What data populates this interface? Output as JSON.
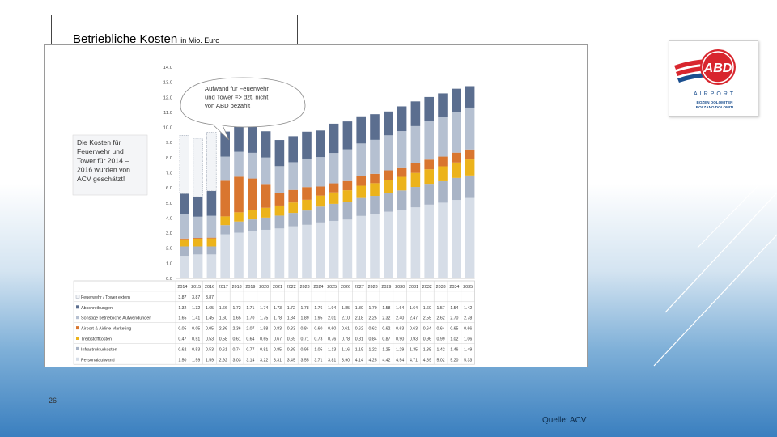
{
  "slide": {
    "title": "Betriebliche Kosten",
    "title_unit": "in Mio. Euro",
    "page_number": "26",
    "source": "Quelle: ACV"
  },
  "logo": {
    "brand": "ABD",
    "name": "AIRPORT",
    "sub1": "BOZEN DOLOMITEN",
    "sub2": "BOLZANO DOLOMITI",
    "colors": {
      "red": "#d8262e",
      "blue": "#1b4f8f"
    }
  },
  "chart_data": {
    "type": "bar",
    "stacked": true,
    "categories": [
      "2014",
      "2015",
      "2016",
      "2017",
      "2018",
      "2019",
      "2020",
      "2021",
      "2022",
      "2023",
      "2024",
      "2025",
      "2026",
      "2027",
      "2028",
      "2029",
      "2030",
      "2031",
      "2032",
      "2033",
      "2034",
      "2035"
    ],
    "ylim": [
      0,
      14
    ],
    "yticks": [
      "0.0",
      "1.0",
      "2.0",
      "3.0",
      "4.0",
      "5.0",
      "6.0",
      "7.0",
      "8.0",
      "9.0",
      "10.0",
      "11.0",
      "12.0",
      "13.0",
      "14.0"
    ],
    "series": [
      {
        "name": "Personalaufwand",
        "color": "#d6dde7",
        "values": [
          "1.50",
          "1.59",
          "1.59",
          "2.92",
          "3.03",
          "3.14",
          "3.22",
          "3.31",
          "3.45",
          "3.55",
          "3.71",
          "3.81",
          "3.90",
          "4.14",
          "4.25",
          "4.42",
          "4.54",
          "4.71",
          "4.89",
          "5.02",
          "5.20",
          "5.33"
        ]
      },
      {
        "name": "Infrastrukturkosten",
        "color": "#a9b4c6",
        "values": [
          "0.62",
          "0.53",
          "0.53",
          "0.61",
          "0.74",
          "0.77",
          "0.81",
          "0.85",
          "0.89",
          "0.95",
          "1.05",
          "1.13",
          "1.16",
          "1.19",
          "1.22",
          "1.25",
          "1.29",
          "1.35",
          "1.38",
          "1.42",
          "1.46",
          "1.49"
        ]
      },
      {
        "name": "Treibstoffkosten",
        "color": "#ecb31b",
        "values": [
          "0.47",
          "0.51",
          "0.53",
          "0.58",
          "0.61",
          "0.64",
          "0.65",
          "0.67",
          "0.69",
          "0.71",
          "0.73",
          "0.76",
          "0.78",
          "0.81",
          "0.84",
          "0.87",
          "0.90",
          "0.93",
          "0.96",
          "0.99",
          "1.02",
          "1.06"
        ]
      },
      {
        "name": "Airport & Airline Marketing",
        "color": "#d9762f",
        "values": [
          "0.05",
          "0.05",
          "0.05",
          "2.36",
          "2.36",
          "2.07",
          "1.58",
          "0.83",
          "0.83",
          "0.84",
          "0.60",
          "0.60",
          "0.61",
          "0.62",
          "0.62",
          "0.62",
          "0.63",
          "0.63",
          "0.64",
          "0.64",
          "0.65",
          "0.66"
        ]
      },
      {
        "name": "Sonstige betriebliche Aufwendungen",
        "color": "#b5c0d1",
        "values": [
          "1.65",
          "1.41",
          "1.45",
          "1.60",
          "1.65",
          "1.70",
          "1.75",
          "1.78",
          "1.84",
          "1.89",
          "1.95",
          "2.01",
          "2.10",
          "2.18",
          "2.25",
          "2.32",
          "2.40",
          "2.47",
          "2.55",
          "2.62",
          "2.70",
          "2.78"
        ]
      },
      {
        "name": "Abschreibungen",
        "color": "#5b6e8f",
        "values": [
          "1.32",
          "1.32",
          "1.65",
          "1.66",
          "1.72",
          "1.71",
          "1.74",
          "1.73",
          "1.72",
          "1.78",
          "1.76",
          "1.94",
          "1.85",
          "1.80",
          "1.70",
          "1.58",
          "1.64",
          "1.64",
          "1.60",
          "1.57",
          "1.54",
          "1.42"
        ]
      },
      {
        "name": "Feuerwehr / Tower extern",
        "color": "#f2f4f7",
        "values": [
          "3.87",
          "3.87",
          "3.87",
          "",
          "",
          "",
          "",
          "",
          "",
          "",
          "",
          "",
          "",
          "",
          "",
          "",
          "",
          "",
          "",
          "",
          "",
          ""
        ]
      }
    ],
    "annotations": [
      {
        "text": "Aufwand für Feuerwehr und Tower => dzt. nicht von ABD bezahlt"
      },
      {
        "text": "Die Kosten für Feuerwehr und Tower für 2014 – 2016 wurden von ACV geschätzt!"
      }
    ]
  }
}
